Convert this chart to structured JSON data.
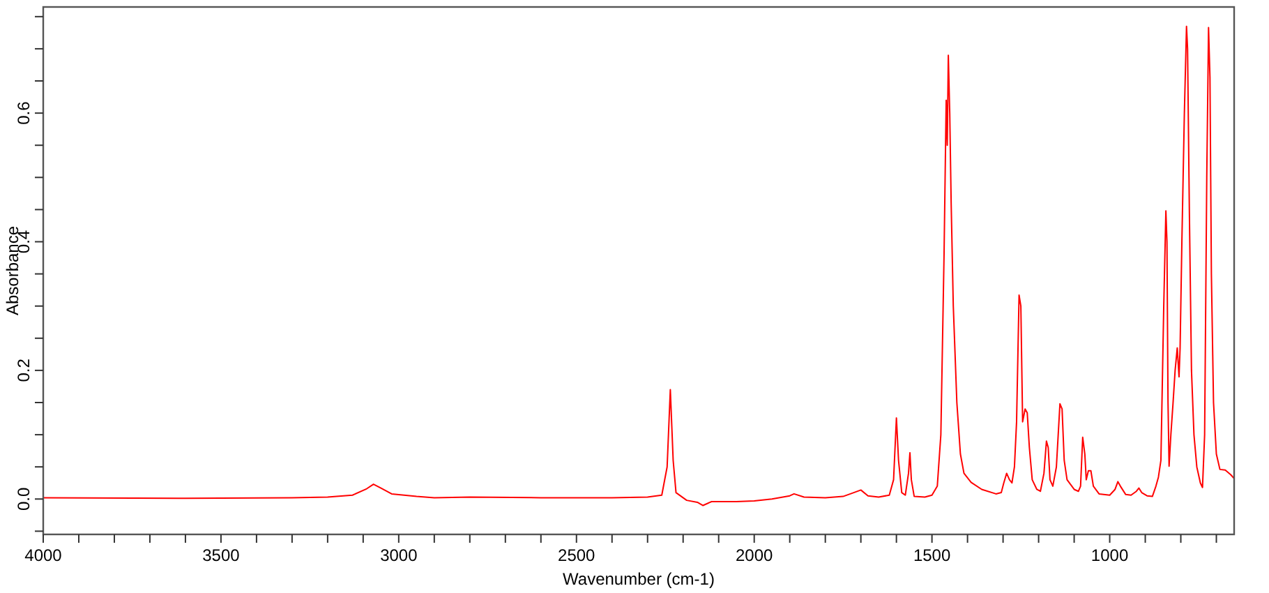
{
  "chart_data": {
    "type": "line",
    "xlabel": "Wavenumber (cm-1)",
    "ylabel": "Absorbance",
    "xlim": [
      4000,
      650
    ],
    "ylim": [
      -0.055,
      0.765
    ],
    "xticks": [
      4000,
      {
        "value": 3900,
        "label": null
      },
      {
        "value": 3800,
        "label": null
      },
      {
        "value": 3700,
        "label": null
      },
      {
        "value": 3600,
        "label": null
      },
      3500,
      {
        "value": 3400,
        "label": null
      },
      {
        "value": 3300,
        "label": null
      },
      {
        "value": 3200,
        "label": null
      },
      {
        "value": 3100,
        "label": null
      },
      3000,
      {
        "value": 2900,
        "label": null
      },
      {
        "value": 2800,
        "label": null
      },
      {
        "value": 2700,
        "label": null
      },
      {
        "value": 2600,
        "label": null
      },
      2500,
      {
        "value": 2400,
        "label": null
      },
      {
        "value": 2300,
        "label": null
      },
      {
        "value": 2200,
        "label": null
      },
      {
        "value": 2100,
        "label": null
      },
      2000,
      {
        "value": 1900,
        "label": null
      },
      {
        "value": 1800,
        "label": null
      },
      {
        "value": 1700,
        "label": null
      },
      {
        "value": 1600,
        "label": null
      },
      1500,
      {
        "value": 1400,
        "label": null
      },
      {
        "value": 1300,
        "label": null
      },
      {
        "value": 1200,
        "label": null
      },
      {
        "value": 1100,
        "label": null
      },
      1000,
      {
        "value": 900,
        "label": null
      },
      {
        "value": 800,
        "label": null
      },
      {
        "value": 700,
        "label": null
      }
    ],
    "yticks": [
      {
        "value": -0.05,
        "label": null
      },
      {
        "value": 0,
        "label": "0.0"
      },
      {
        "value": 0.05,
        "label": null
      },
      {
        "value": 0.1,
        "label": null
      },
      {
        "value": 0.15,
        "label": null
      },
      0.2,
      {
        "value": 0.25,
        "label": null
      },
      {
        "value": 0.3,
        "label": null
      },
      {
        "value": 0.35,
        "label": null
      },
      0.4,
      {
        "value": 0.45,
        "label": null
      },
      {
        "value": 0.5,
        "label": null
      },
      {
        "value": 0.55,
        "label": null
      },
      0.6,
      {
        "value": 0.65,
        "label": null
      },
      {
        "value": 0.7,
        "label": null
      },
      {
        "value": 0.75,
        "label": null
      }
    ],
    "grid": false,
    "marker": "none",
    "line_style": "solid",
    "series": [
      {
        "color": "#ff0000",
        "x": [
          4000,
          3600,
          3300,
          3200,
          3130,
          3090,
          3071,
          3050,
          3020,
          2950,
          2900,
          2800,
          2600,
          2400,
          2300,
          2260,
          2245,
          2236,
          2228,
          2220,
          2190,
          2160,
          2144,
          2120,
          2050,
          2000,
          1950,
          1900,
          1888,
          1860,
          1800,
          1750,
          1720,
          1700,
          1680,
          1650,
          1620,
          1608,
          1600,
          1594,
          1585,
          1575,
          1566,
          1562,
          1558,
          1550,
          1520,
          1500,
          1485,
          1475,
          1466,
          1460,
          1457,
          1454,
          1450,
          1446,
          1440,
          1430,
          1420,
          1410,
          1390,
          1360,
          1320,
          1305,
          1298,
          1290,
          1282,
          1275,
          1268,
          1262,
          1255,
          1250,
          1245,
          1238,
          1232,
          1226,
          1218,
          1205,
          1195,
          1185,
          1178,
          1173,
          1168,
          1160,
          1150,
          1140,
          1134,
          1128,
          1120,
          1100,
          1088,
          1082,
          1076,
          1070,
          1066,
          1060,
          1053,
          1046,
          1030,
          1000,
          985,
          977,
          970,
          955,
          940,
          925,
          918,
          910,
          895,
          880,
          870,
          863,
          856,
          848,
          842,
          839,
          836,
          833,
          828,
          822,
          816,
          810,
          805,
          802,
          797,
          790,
          784,
          781,
          776,
          770,
          763,
          755,
          745,
          739,
          733,
          727,
          722,
          718,
          714,
          708,
          700,
          690,
          675,
          660,
          650
        ],
        "values": [
          0.002,
          0.001,
          0.002,
          0.003,
          0.006,
          0.016,
          0.023,
          0.017,
          0.008,
          0.004,
          0.002,
          0.003,
          0.002,
          0.002,
          0.003,
          0.006,
          0.05,
          0.17,
          0.06,
          0.01,
          -0.002,
          -0.005,
          -0.01,
          -0.004,
          -0.004,
          -0.003,
          0.0,
          0.005,
          0.008,
          0.003,
          0.002,
          0.004,
          0.01,
          0.014,
          0.005,
          0.003,
          0.006,
          0.03,
          0.126,
          0.06,
          0.01,
          0.006,
          0.04,
          0.072,
          0.03,
          0.004,
          0.003,
          0.006,
          0.02,
          0.1,
          0.38,
          0.62,
          0.55,
          0.69,
          0.6,
          0.46,
          0.3,
          0.15,
          0.07,
          0.04,
          0.026,
          0.015,
          0.008,
          0.01,
          0.025,
          0.04,
          0.03,
          0.025,
          0.05,
          0.12,
          0.317,
          0.3,
          0.12,
          0.14,
          0.134,
          0.08,
          0.03,
          0.015,
          0.012,
          0.04,
          0.09,
          0.08,
          0.03,
          0.02,
          0.05,
          0.148,
          0.14,
          0.06,
          0.03,
          0.015,
          0.012,
          0.02,
          0.096,
          0.07,
          0.03,
          0.044,
          0.044,
          0.02,
          0.008,
          0.006,
          0.015,
          0.027,
          0.02,
          0.007,
          0.006,
          0.012,
          0.017,
          0.01,
          0.005,
          0.004,
          0.02,
          0.034,
          0.06,
          0.3,
          0.448,
          0.4,
          0.15,
          0.051,
          0.1,
          0.148,
          0.2,
          0.235,
          0.19,
          0.235,
          0.4,
          0.6,
          0.735,
          0.7,
          0.45,
          0.2,
          0.1,
          0.05,
          0.025,
          0.018,
          0.1,
          0.5,
          0.733,
          0.656,
          0.35,
          0.15,
          0.07,
          0.046,
          0.045,
          0.038,
          0.032
        ]
      }
    ]
  }
}
